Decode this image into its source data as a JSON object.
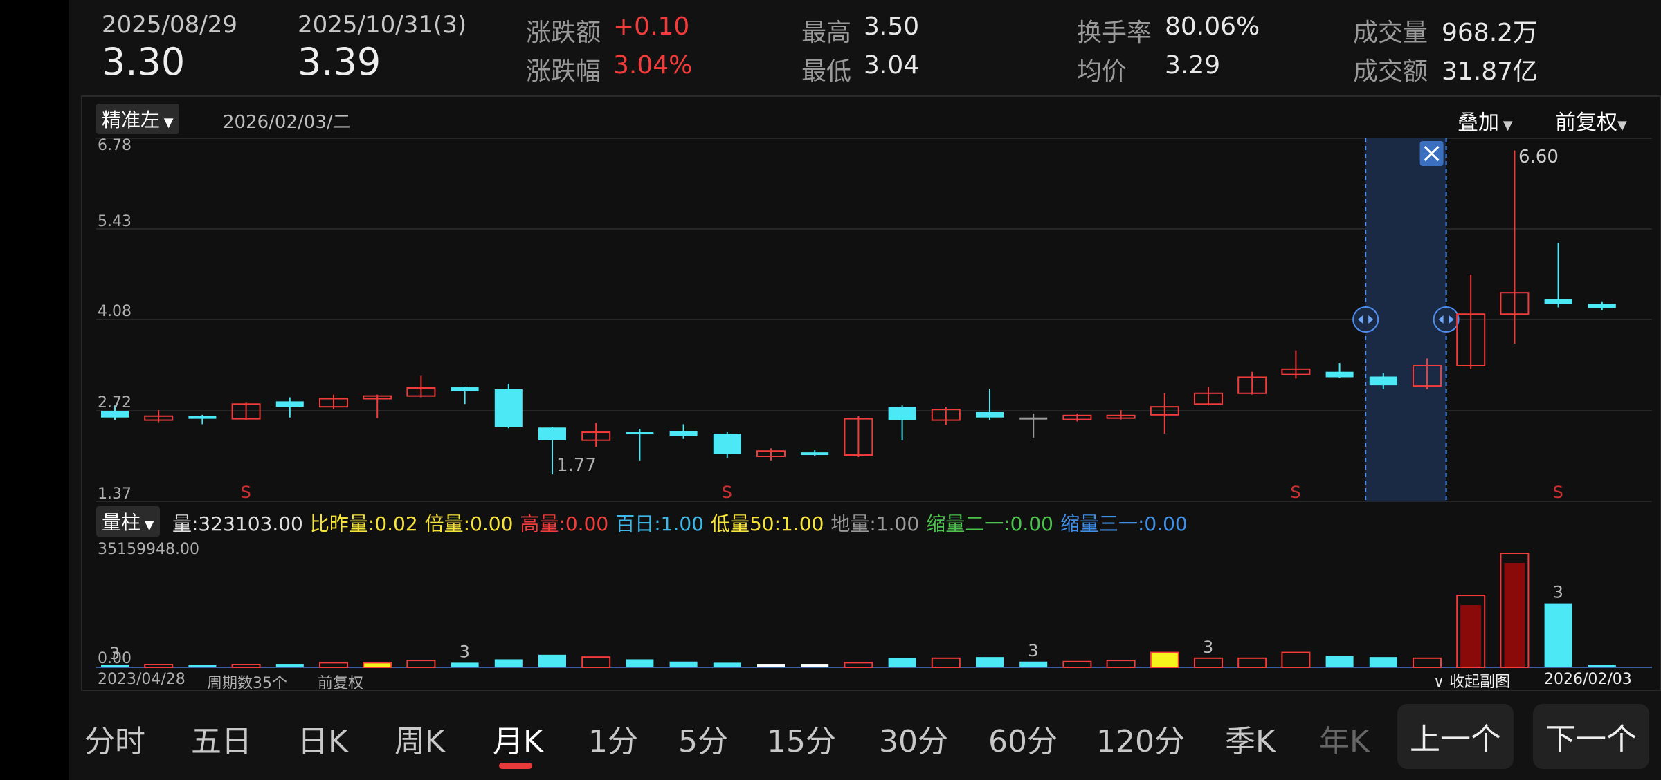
{
  "header": {
    "date_left": "2025/08/29",
    "price_left": "3.30",
    "date_right": "2025/10/31(3)",
    "price_right": "3.39",
    "stats": [
      {
        "label": "涨跌额",
        "value": "+0.10",
        "red": true
      },
      {
        "label": "涨跌幅",
        "value": "3.04%",
        "red": true
      },
      {
        "label": "最高",
        "value": "3.50"
      },
      {
        "label": "最低",
        "value": "3.04"
      },
      {
        "label": "换手率",
        "value": "80.06%"
      },
      {
        "label": "均价",
        "value": "3.29"
      },
      {
        "label": "成交量",
        "value": "968.2万"
      },
      {
        "label": "成交额",
        "value": "31.87亿"
      }
    ]
  },
  "toolbar": {
    "cursor_mode": "精准左",
    "current_date": "2026/02/03/二",
    "overlay": "叠加",
    "adjust": "前复权"
  },
  "chart": {
    "y_ticks": [
      "6.78",
      "5.43",
      "4.08",
      "2.72",
      "1.37"
    ],
    "low_label": "1.77",
    "high_label": "6.60",
    "signal_marker": "S"
  },
  "indicator": {
    "type": "量柱",
    "items": [
      {
        "text": "量:323103.00",
        "color": "#e0e0e0"
      },
      {
        "text": "比昨量:0.02",
        "color": "#f5e33a"
      },
      {
        "text": "倍量:0.00",
        "color": "#f5e33a"
      },
      {
        "text": "高量:0.00",
        "color": "#f23b3b"
      },
      {
        "text": "百日:1.00",
        "color": "#3fb7e6"
      },
      {
        "text": "低量50:1.00",
        "color": "#f5e33a"
      },
      {
        "text": "地量:1.00",
        "color": "#9a9a9a"
      },
      {
        "text": "缩量二一:0.00",
        "color": "#4cc24c"
      },
      {
        "text": "缩量三一:0.00",
        "color": "#3f8fe6"
      }
    ],
    "vol_max": "35159948.00",
    "vol_zero": "0.00",
    "vol_marker": "3"
  },
  "footer": {
    "start_date": "2023/04/28",
    "period_count": "周期数35个",
    "adjust": "前复权",
    "collapse": "收起副图",
    "end_date": "2026/02/03"
  },
  "tabs": [
    "分时",
    "五日",
    "日K",
    "周K",
    "月K",
    "1分",
    "5分",
    "15分",
    "30分",
    "60分",
    "120分",
    "季K",
    "年K"
  ],
  "nav": {
    "prev": "上一个",
    "next": "下一个"
  },
  "colors": {
    "up": "#f23b3b",
    "down": "#4de8f5",
    "accent": "#e83a3a",
    "selection": "#1b2a44"
  },
  "chart_data": {
    "type": "candlestick",
    "y_axis_ticks": [
      6.78,
      5.43,
      4.08,
      2.72,
      1.37
    ],
    "candles": [
      {
        "o": 2.72,
        "c": 2.62,
        "h": 2.8,
        "l": 2.58
      },
      {
        "o": 2.58,
        "c": 2.64,
        "h": 2.73,
        "l": 2.55
      },
      {
        "o": 2.64,
        "c": 2.6,
        "h": 2.66,
        "l": 2.52
      },
      {
        "o": 2.6,
        "c": 2.82,
        "h": 2.84,
        "l": 2.58
      },
      {
        "o": 2.86,
        "c": 2.78,
        "h": 2.92,
        "l": 2.62
      },
      {
        "o": 2.78,
        "c": 2.9,
        "h": 2.96,
        "l": 2.75
      },
      {
        "o": 2.9,
        "c": 2.94,
        "h": 2.96,
        "l": 2.61
      },
      {
        "o": 2.94,
        "c": 3.06,
        "h": 3.24,
        "l": 2.92
      },
      {
        "o": 3.07,
        "c": 3.01,
        "h": 3.08,
        "l": 2.82
      },
      {
        "o": 3.04,
        "c": 2.48,
        "h": 3.12,
        "l": 2.46
      },
      {
        "o": 2.47,
        "c": 2.28,
        "h": 2.48,
        "l": 1.77
      },
      {
        "o": 2.28,
        "c": 2.4,
        "h": 2.54,
        "l": 2.18
      },
      {
        "o": 2.4,
        "c": 2.37,
        "h": 2.45,
        "l": 1.98
      },
      {
        "o": 2.42,
        "c": 2.34,
        "h": 2.52,
        "l": 2.3
      },
      {
        "o": 2.38,
        "c": 2.08,
        "h": 2.4,
        "l": 2.02
      },
      {
        "o": 2.04,
        "c": 2.12,
        "h": 2.16,
        "l": 1.98
      },
      {
        "o": 2.1,
        "c": 2.06,
        "h": 2.13,
        "l": 2.05
      },
      {
        "o": 2.06,
        "c": 2.6,
        "h": 2.64,
        "l": 2.03
      },
      {
        "o": 2.78,
        "c": 2.58,
        "h": 2.8,
        "l": 2.28
      },
      {
        "o": 2.58,
        "c": 2.74,
        "h": 2.78,
        "l": 2.51
      },
      {
        "o": 2.7,
        "c": 2.62,
        "h": 3.04,
        "l": 2.58
      },
      {
        "o": 2.62,
        "c": 2.62,
        "h": 2.68,
        "l": 2.32
      },
      {
        "o": 2.59,
        "c": 2.65,
        "h": 2.68,
        "l": 2.56
      },
      {
        "o": 2.61,
        "c": 2.65,
        "h": 2.73,
        "l": 2.59
      },
      {
        "o": 2.66,
        "c": 2.78,
        "h": 2.98,
        "l": 2.38
      },
      {
        "o": 2.82,
        "c": 2.98,
        "h": 3.07,
        "l": 2.8
      },
      {
        "o": 2.98,
        "c": 3.22,
        "h": 3.3,
        "l": 2.96
      },
      {
        "o": 3.26,
        "c": 3.34,
        "h": 3.62,
        "l": 3.2
      },
      {
        "o": 3.3,
        "c": 3.22,
        "h": 3.43,
        "l": 3.21
      },
      {
        "o": 3.23,
        "c": 3.1,
        "h": 3.28,
        "l": 3.04
      },
      {
        "o": 3.09,
        "c": 3.39,
        "h": 3.5,
        "l": 3.04
      },
      {
        "o": 3.39,
        "c": 4.16,
        "h": 4.75,
        "l": 3.34
      },
      {
        "o": 4.16,
        "c": 4.48,
        "h": 6.6,
        "l": 3.72
      },
      {
        "o": 4.38,
        "c": 4.31,
        "h": 5.22,
        "l": 4.26
      },
      {
        "o": 4.31,
        "c": 4.25,
        "h": 4.34,
        "l": 4.22
      }
    ],
    "volume": [
      0.02,
      0.02,
      0.02,
      0.02,
      0.03,
      0.04,
      0.04,
      0.06,
      0.04,
      0.07,
      0.11,
      0.09,
      0.07,
      0.05,
      0.04,
      0.03,
      0.03,
      0.04,
      0.08,
      0.08,
      0.09,
      0.05,
      0.05,
      0.06,
      0.13,
      0.08,
      0.08,
      0.13,
      0.1,
      0.09,
      0.08,
      0.63,
      1.0,
      0.56,
      0.01
    ],
    "volume_max": 35159948.0,
    "signal_S_indices": [
      3,
      14,
      27,
      33
    ],
    "volume_3_markers": [
      0,
      8,
      21,
      25,
      33
    ],
    "selected_range": [
      29,
      30
    ]
  }
}
